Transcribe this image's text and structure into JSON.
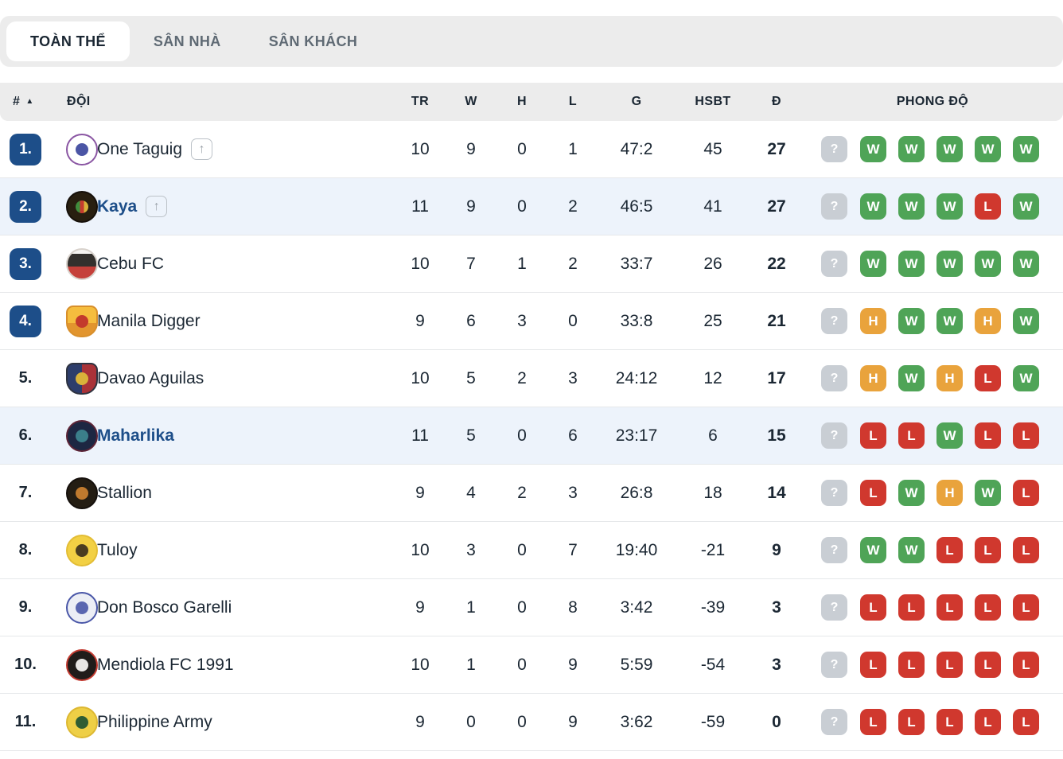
{
  "tabs": [
    {
      "label": "TOÀN THỂ",
      "active": true
    },
    {
      "label": "SÂN NHÀ",
      "active": false
    },
    {
      "label": "SÂN KHÁCH",
      "active": false
    }
  ],
  "colors": {
    "accent_navy": "#1d4e89",
    "highlight_row": "#edf3fb",
    "tab_bar_bg": "#ececec",
    "header_bg": "#ececec",
    "form_win": "#4fa457",
    "form_draw": "#e9a33c",
    "form_loss": "#d0382e",
    "form_unknown": "#c9ced4"
  },
  "table": {
    "headers": {
      "rank": "#",
      "sort_icon": "▲",
      "team": "ĐỘI",
      "played": "TR",
      "wins": "W",
      "draws": "H",
      "losses": "L",
      "goals": "G",
      "diff": "HSBT",
      "points": "Đ",
      "form": "PHONG ĐỘ"
    },
    "rows": [
      {
        "rank": "1.",
        "rank_badge": true,
        "team": "One Taguig",
        "promotion_icon": "↑",
        "highlighted": false,
        "played": "10",
        "wins": "9",
        "draws": "0",
        "losses": "1",
        "goals": "47:2",
        "diff": "45",
        "points": "27",
        "form": [
          "?",
          "W",
          "W",
          "W",
          "W",
          "W"
        ],
        "logo": {
          "ring": "#8a56a3",
          "bg": "#ffffff",
          "core": "#4b55a5",
          "shape": "circle"
        }
      },
      {
        "rank": "2.",
        "rank_badge": true,
        "team": "Kaya",
        "promotion_icon": "↑",
        "highlighted": true,
        "played": "11",
        "wins": "9",
        "draws": "0",
        "losses": "2",
        "goals": "46:5",
        "diff": "41",
        "points": "27",
        "form": [
          "?",
          "W",
          "W",
          "W",
          "L",
          "W"
        ],
        "logo": {
          "ring": "#16100a",
          "bg": "#281f10",
          "core": "linear-gradient(90deg,#3f8c3c 33%,#c63c2f 33% 66%,#d9b23a 66%)",
          "shape": "circle"
        }
      },
      {
        "rank": "3.",
        "rank_badge": true,
        "team": "Cebu FC",
        "promotion_icon": null,
        "highlighted": false,
        "played": "10",
        "wins": "7",
        "draws": "1",
        "losses": "2",
        "goals": "33:7",
        "diff": "26",
        "points": "22",
        "form": [
          "?",
          "W",
          "W",
          "W",
          "W",
          "W"
        ],
        "logo": {
          "ring": "#d8d2cc",
          "bg": "linear-gradient(180deg,#f5f3f1 0 14%,#33302d 14% 58%,#c5403a 58%)",
          "core": null,
          "shape": "circle"
        }
      },
      {
        "rank": "4.",
        "rank_badge": true,
        "team": "Manila Digger",
        "promotion_icon": null,
        "highlighted": false,
        "played": "9",
        "wins": "6",
        "draws": "3",
        "losses": "0",
        "goals": "33:8",
        "diff": "25",
        "points": "21",
        "form": [
          "?",
          "H",
          "W",
          "W",
          "H",
          "W"
        ],
        "logo": {
          "ring": "#d88f2b",
          "bg": "linear-gradient(180deg,#f5bd3e 0 55%,#e2952e 55%)",
          "core": "#c33a2c",
          "shape": "shield"
        }
      },
      {
        "rank": "5.",
        "rank_badge": false,
        "team": "Davao Aguilas",
        "promotion_icon": null,
        "highlighted": false,
        "played": "10",
        "wins": "5",
        "draws": "2",
        "losses": "3",
        "goals": "24:12",
        "diff": "12",
        "points": "17",
        "form": [
          "?",
          "H",
          "W",
          "H",
          "L",
          "W"
        ],
        "logo": {
          "ring": "#2e3340",
          "bg": "linear-gradient(90deg,#2d3d6b 0 50%,#a93238 50%)",
          "core": "#d9b23a",
          "shape": "shield"
        }
      },
      {
        "rank": "6.",
        "rank_badge": false,
        "team": "Maharlika",
        "promotion_icon": null,
        "highlighted": true,
        "played": "11",
        "wins": "5",
        "draws": "0",
        "losses": "6",
        "goals": "23:17",
        "diff": "6",
        "points": "15",
        "form": [
          "?",
          "L",
          "L",
          "W",
          "L",
          "L"
        ],
        "logo": {
          "ring": "#5d2436",
          "bg": "#1d2742",
          "core": "#3b7f8a",
          "shape": "circle"
        }
      },
      {
        "rank": "7.",
        "rank_badge": false,
        "team": "Stallion",
        "promotion_icon": null,
        "highlighted": false,
        "played": "9",
        "wins": "4",
        "draws": "2",
        "losses": "3",
        "goals": "26:8",
        "diff": "18",
        "points": "14",
        "form": [
          "?",
          "L",
          "W",
          "H",
          "W",
          "L"
        ],
        "logo": {
          "ring": "#15100c",
          "bg": "#241d13",
          "core": "#c07a2e",
          "shape": "circle"
        }
      },
      {
        "rank": "8.",
        "rank_badge": false,
        "team": "Tuloy",
        "promotion_icon": null,
        "highlighted": false,
        "played": "10",
        "wins": "3",
        "draws": "0",
        "losses": "7",
        "goals": "19:40",
        "diff": "-21",
        "points": "9",
        "form": [
          "?",
          "W",
          "W",
          "L",
          "L",
          "L"
        ],
        "logo": {
          "ring": "#e3bd35",
          "bg": "#f2d044",
          "core": "#4a3d20",
          "shape": "circle"
        }
      },
      {
        "rank": "9.",
        "rank_badge": false,
        "team": "Don Bosco Garelli",
        "promotion_icon": null,
        "highlighted": false,
        "played": "9",
        "wins": "1",
        "draws": "0",
        "losses": "8",
        "goals": "3:42",
        "diff": "-39",
        "points": "3",
        "form": [
          "?",
          "L",
          "L",
          "L",
          "L",
          "L"
        ],
        "logo": {
          "ring": "#4a57a8",
          "bg": "#eceef5",
          "core": "#5a66b0",
          "shape": "circle"
        }
      },
      {
        "rank": "10.",
        "rank_badge": false,
        "team": "Mendiola FC 1991",
        "promotion_icon": null,
        "highlighted": false,
        "played": "10",
        "wins": "1",
        "draws": "0",
        "losses": "9",
        "goals": "5:59",
        "diff": "-54",
        "points": "3",
        "form": [
          "?",
          "L",
          "L",
          "L",
          "L",
          "L"
        ],
        "logo": {
          "ring": "#c23a30",
          "bg": "#201c1a",
          "core": "#e8e6e4",
          "shape": "circle"
        }
      },
      {
        "rank": "11.",
        "rank_badge": false,
        "team": "Philippine Army",
        "promotion_icon": null,
        "highlighted": false,
        "played": "9",
        "wins": "0",
        "draws": "0",
        "losses": "9",
        "goals": "3:62",
        "diff": "-59",
        "points": "0",
        "form": [
          "?",
          "L",
          "L",
          "L",
          "L",
          "L"
        ],
        "logo": {
          "ring": "#ddb832",
          "bg": "#eecf46",
          "core": "#2f5d33",
          "shape": "circle"
        }
      }
    ]
  }
}
